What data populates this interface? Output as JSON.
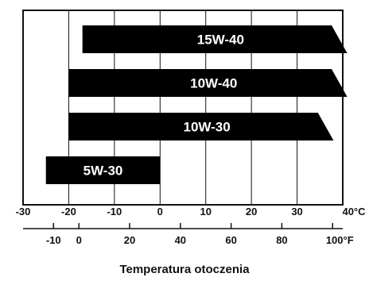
{
  "chart_data": {
    "type": "bar",
    "orientation": "horizontal-range",
    "title": "",
    "xlabel": "Temperatura otoczenia",
    "grid": true,
    "celsius_axis": {
      "unit_label": "°C",
      "ticks": [
        -30,
        -20,
        -10,
        0,
        10,
        20,
        30,
        40
      ],
      "range": [
        -30,
        40
      ]
    },
    "fahrenheit_axis": {
      "unit_label": "°F",
      "ticks": [
        -10,
        0,
        20,
        40,
        60,
        80,
        100
      ],
      "range": [
        -22,
        104
      ]
    },
    "series": [
      {
        "label": "15W-40",
        "from_c": -17,
        "to_c": 40,
        "open_end": true
      },
      {
        "label": "10W-40",
        "from_c": -20,
        "to_c": 40,
        "open_end": true
      },
      {
        "label": "10W-30",
        "from_c": -20,
        "to_c": 37,
        "open_end": true
      },
      {
        "label": "5W-30",
        "from_c": -25,
        "to_c": 0,
        "open_end": false
      }
    ]
  }
}
